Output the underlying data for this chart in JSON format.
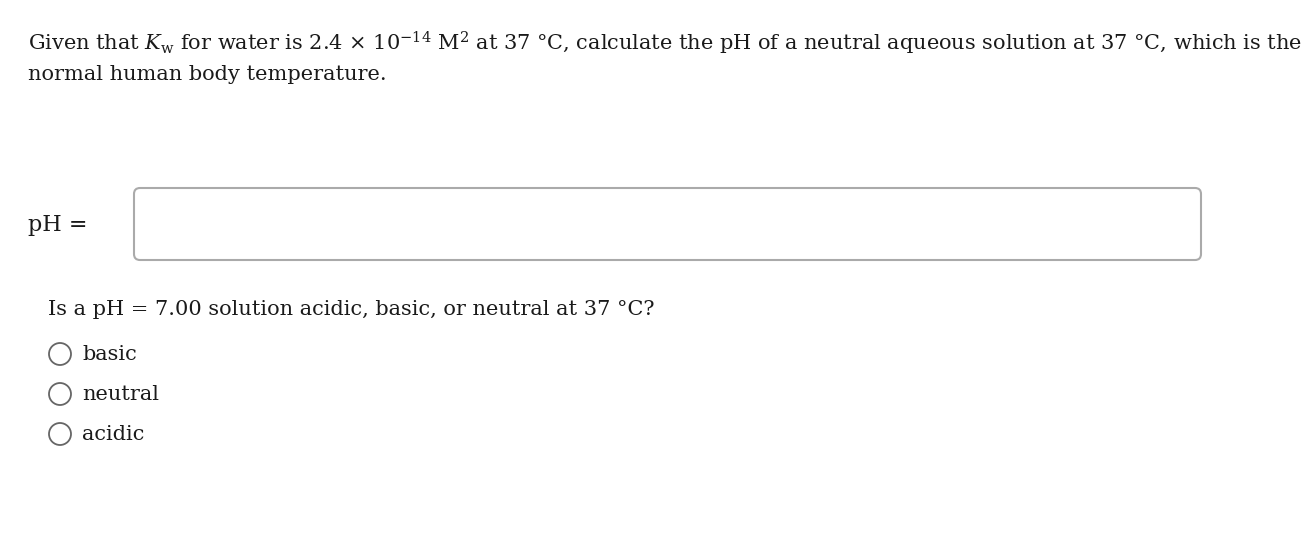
{
  "bg_color": "#ffffff",
  "text_color": "#1a1a1a",
  "font_size_main": 15.0,
  "font_size_label": 15.0,
  "font_size_question": 15.0,
  "font_size_options": 15.0,
  "line1": "Given that $K_{\\mathrm{w}}$ for water is 2.4 × 10$^{-14}$ M$^{2}$ at 37 °C, calculate the pH of a neutral aqueous solution at 37 °C, which is the",
  "line2": "normal human body temperature.",
  "ph_label": "pH =",
  "question": "Is a pH = 7.00 solution acidic, basic, or neutral at 37 °C?",
  "options": [
    "basic",
    "neutral",
    "acidic"
  ]
}
